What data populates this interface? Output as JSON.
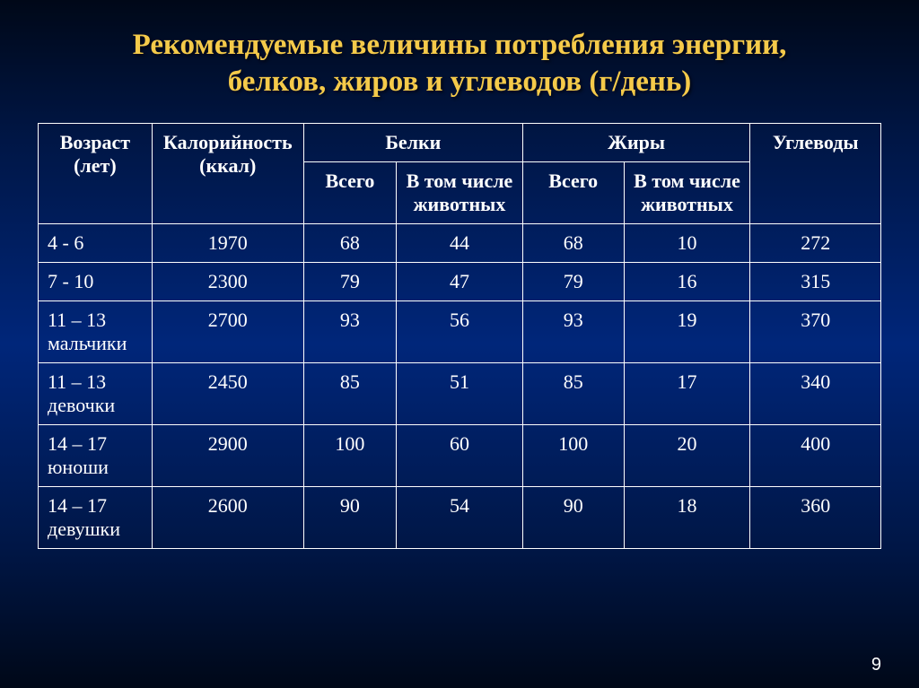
{
  "title_line1": "Рекомендуемые величины потребления энергии,",
  "title_line2": "белков, жиров и углеводов (г/день)",
  "headers": {
    "age": "Возраст (лет)",
    "cal": "Калорийность (ккал)",
    "protein": "Белки",
    "fat": "Жиры",
    "carb": "Углеводы",
    "total": "Всего",
    "animal": "В том числе животных"
  },
  "rows": [
    {
      "age": "4 - 6",
      "cal": "1970",
      "p_total": "68",
      "p_anim": "44",
      "f_total": "68",
      "f_anim": "10",
      "carb": "272"
    },
    {
      "age": "7 - 10",
      "cal": "2300",
      "p_total": "79",
      "p_anim": "47",
      "f_total": "79",
      "f_anim": "16",
      "carb": "315"
    },
    {
      "age": "11 – 13 мальчики",
      "cal": "2700",
      "p_total": "93",
      "p_anim": "56",
      "f_total": "93",
      "f_anim": "19",
      "carb": "370"
    },
    {
      "age": "11 – 13 девочки",
      "cal": "2450",
      "p_total": "85",
      "p_anim": "51",
      "f_total": "85",
      "f_anim": "17",
      "carb": "340"
    },
    {
      "age": "14 – 17 юноши",
      "cal": "2900",
      "p_total": "100",
      "p_anim": "60",
      "f_total": "100",
      "f_anim": "20",
      "carb": "400"
    },
    {
      "age": "14 – 17 девушки",
      "cal": "2600",
      "p_total": "90",
      "p_anim": "54",
      "f_total": "90",
      "f_anim": "18",
      "carb": "360"
    }
  ],
  "page_number": "9",
  "style": {
    "title_color": "#f5ca4a",
    "title_fontsize": 33,
    "text_color": "#ffffff",
    "border_color": "#ffffff",
    "cell_fontsize": 22,
    "bg_gradient": [
      "#000818",
      "#001645",
      "#00267a",
      "#001645",
      "#000818"
    ]
  }
}
